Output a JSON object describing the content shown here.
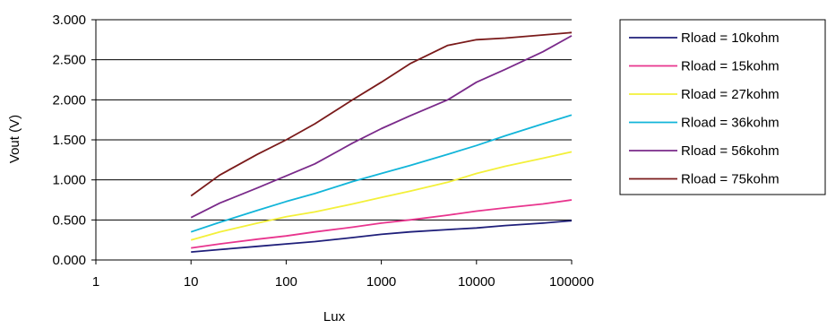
{
  "chart_data": {
    "type": "line",
    "title": "",
    "xlabel": "Lux",
    "ylabel": "Vout (V)",
    "x_scale": "log",
    "xlim": [
      1,
      100000
    ],
    "ylim": [
      0,
      3
    ],
    "x_ticks": [
      "1",
      "10",
      "100",
      "1000",
      "10000",
      "100000"
    ],
    "y_ticks": [
      "0.000",
      "0.500",
      "1.000",
      "1.500",
      "2.000",
      "2.500",
      "3.000"
    ],
    "grid": "horizontal",
    "legend_position": "right",
    "x": [
      10,
      20,
      50,
      100,
      200,
      500,
      1000,
      2000,
      5000,
      10000,
      20000,
      50000,
      100000
    ],
    "series": [
      {
        "name": "Rload = 10kohm",
        "color": "#1f1f7a",
        "values": [
          0.1,
          0.13,
          0.17,
          0.2,
          0.23,
          0.28,
          0.32,
          0.35,
          0.38,
          0.4,
          0.43,
          0.46,
          0.49
        ]
      },
      {
        "name": "Rload = 15kohm",
        "color": "#e8358e",
        "values": [
          0.15,
          0.2,
          0.26,
          0.3,
          0.35,
          0.41,
          0.46,
          0.5,
          0.56,
          0.61,
          0.65,
          0.7,
          0.75
        ]
      },
      {
        "name": "Rload = 27kohm",
        "color": "#f3f03a",
        "values": [
          0.25,
          0.35,
          0.46,
          0.54,
          0.6,
          0.7,
          0.78,
          0.86,
          0.97,
          1.08,
          1.17,
          1.27,
          1.35
        ]
      },
      {
        "name": "Rload = 36kohm",
        "color": "#12b5d9",
        "values": [
          0.35,
          0.47,
          0.62,
          0.73,
          0.83,
          0.98,
          1.08,
          1.18,
          1.32,
          1.43,
          1.55,
          1.7,
          1.81
        ]
      },
      {
        "name": "Rload = 56kohm",
        "color": "#7a2a8a",
        "values": [
          0.53,
          0.71,
          0.9,
          1.05,
          1.2,
          1.46,
          1.64,
          1.8,
          2.0,
          2.22,
          2.38,
          2.6,
          2.8
        ]
      },
      {
        "name": "Rload = 75kohm",
        "color": "#7a1a1a",
        "values": [
          0.8,
          1.06,
          1.32,
          1.5,
          1.7,
          2.0,
          2.22,
          2.45,
          2.68,
          2.75,
          2.77,
          2.81,
          2.84
        ]
      }
    ]
  }
}
